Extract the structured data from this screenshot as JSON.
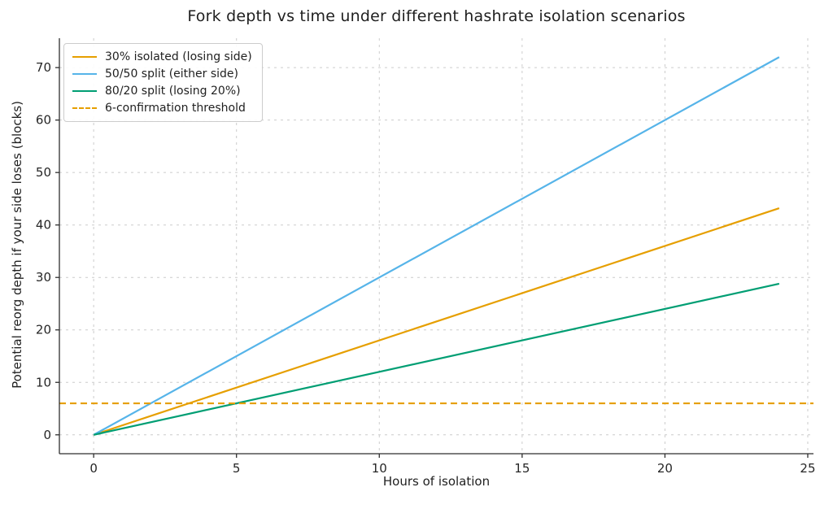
{
  "chart_data": {
    "type": "line",
    "title": "Fork depth vs time under different hashrate isolation scenarios",
    "xlabel": "Hours of isolation",
    "ylabel": "Potential reorg depth if your side loses (blocks)",
    "xlim": [
      -1.2,
      25.2
    ],
    "ylim": [
      -3.6,
      75.6
    ],
    "xticks": [
      0,
      5,
      10,
      15,
      20,
      25
    ],
    "yticks": [
      0,
      10,
      20,
      30,
      40,
      50,
      60,
      70
    ],
    "grid": true,
    "grid_style": "dashed",
    "legend_position": "upper-left",
    "threshold_value": 6,
    "accent_colors": {
      "orange": "#E69F00",
      "sky_blue": "#56B4E9",
      "green": "#009E73",
      "grid": "#cccccc",
      "spine": "#2e2e2e"
    },
    "series": [
      {
        "name": "30% isolated (losing side)",
        "color": "#E69F00",
        "style": "solid",
        "x": [
          0,
          24
        ],
        "y": [
          0,
          43.2
        ]
      },
      {
        "name": "50/50 split (either side)",
        "color": "#56B4E9",
        "style": "solid",
        "x": [
          0,
          24
        ],
        "y": [
          0,
          72
        ]
      },
      {
        "name": "80/20 split (losing 20%)",
        "color": "#009E73",
        "style": "solid",
        "x": [
          0,
          24
        ],
        "y": [
          0,
          28.8
        ]
      },
      {
        "name": "6-confirmation threshold",
        "color": "#E69F00",
        "style": "dashed",
        "span": "full",
        "y_const": 6
      }
    ]
  }
}
